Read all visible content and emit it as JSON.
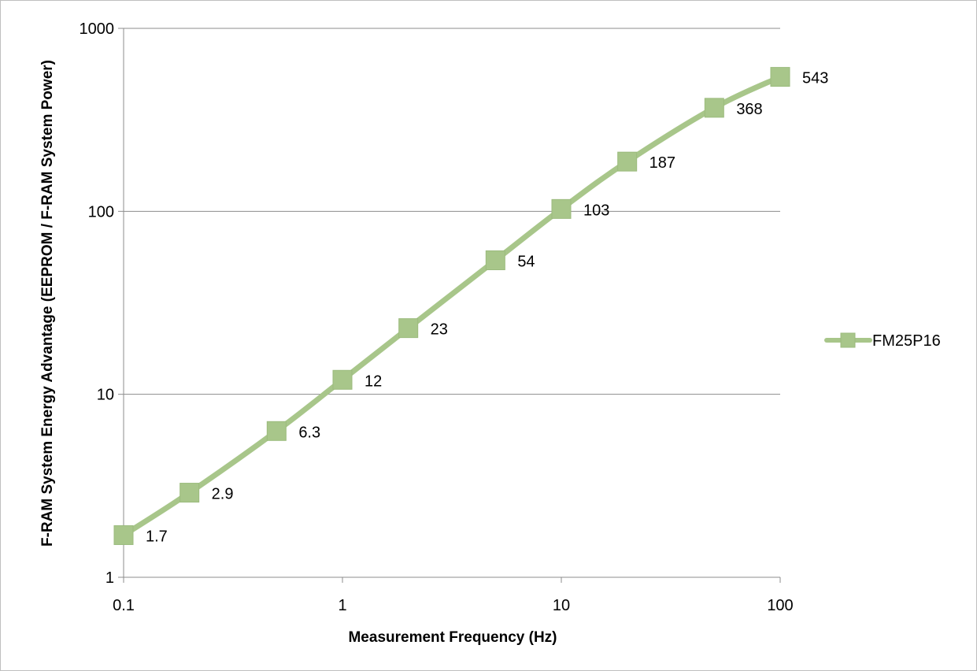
{
  "chart_data": {
    "type": "line",
    "title": "",
    "xlabel": "Measurement Frequency (Hz)",
    "ylabel": "F-RAM System Energy Advantage (EEPROM / F-RAM System Power)",
    "x_scale": "log",
    "y_scale": "log",
    "xlim": [
      0.1,
      100
    ],
    "ylim": [
      1,
      1000
    ],
    "x_ticks": [
      "0.1",
      "1",
      "10",
      "100"
    ],
    "y_ticks": [
      "1",
      "10",
      "100",
      "1000"
    ],
    "grid": "horizontal major gridlines",
    "legend_position": "right",
    "series": [
      {
        "name": "FM25P16",
        "color": "#a8c68a",
        "marker": "square",
        "x": [
          0.1,
          0.2,
          0.5,
          1,
          2,
          5,
          10,
          20,
          50,
          100
        ],
        "values": [
          1.7,
          2.9,
          6.3,
          12,
          23,
          54,
          103,
          187,
          368,
          543
        ],
        "labels": [
          "1.7",
          "2.9",
          "6.3",
          "12",
          "23",
          "54",
          "103",
          "187",
          "368",
          "543"
        ]
      }
    ]
  }
}
